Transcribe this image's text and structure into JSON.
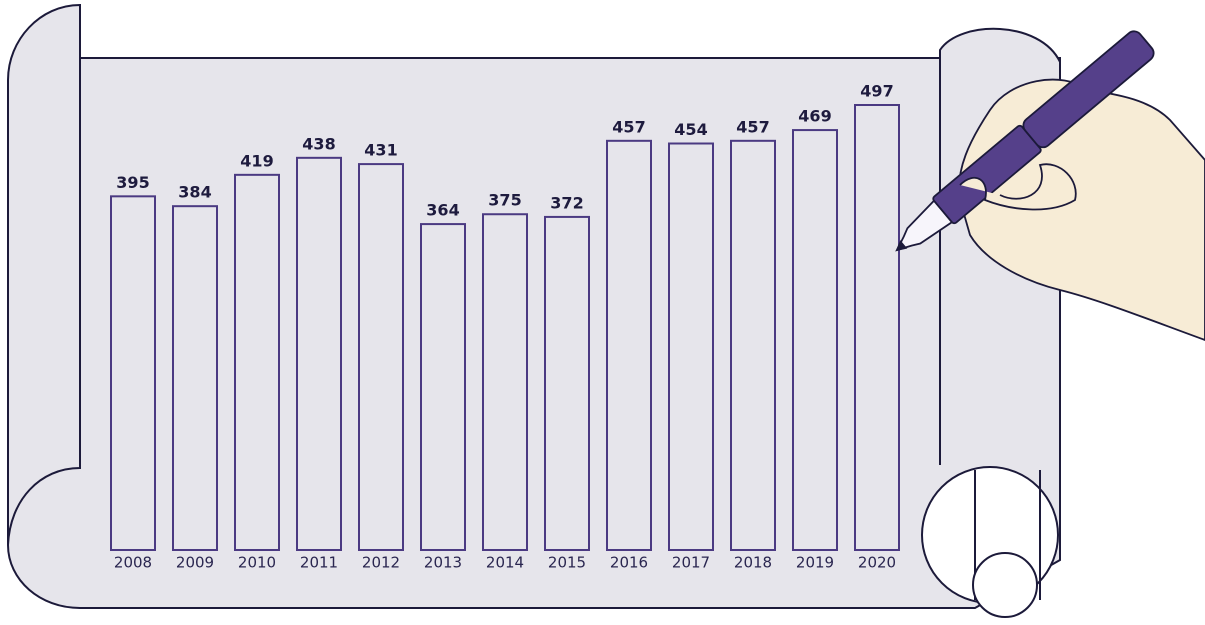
{
  "chart_data": {
    "type": "bar",
    "categories": [
      "2008",
      "2009",
      "2010",
      "2011",
      "2012",
      "2013",
      "2014",
      "2015",
      "2016",
      "2017",
      "2018",
      "2019",
      "2020"
    ],
    "values": [
      395,
      384,
      419,
      438,
      431,
      364,
      375,
      372,
      457,
      454,
      457,
      469,
      497
    ],
    "color": "#4b3a82"
  }
}
